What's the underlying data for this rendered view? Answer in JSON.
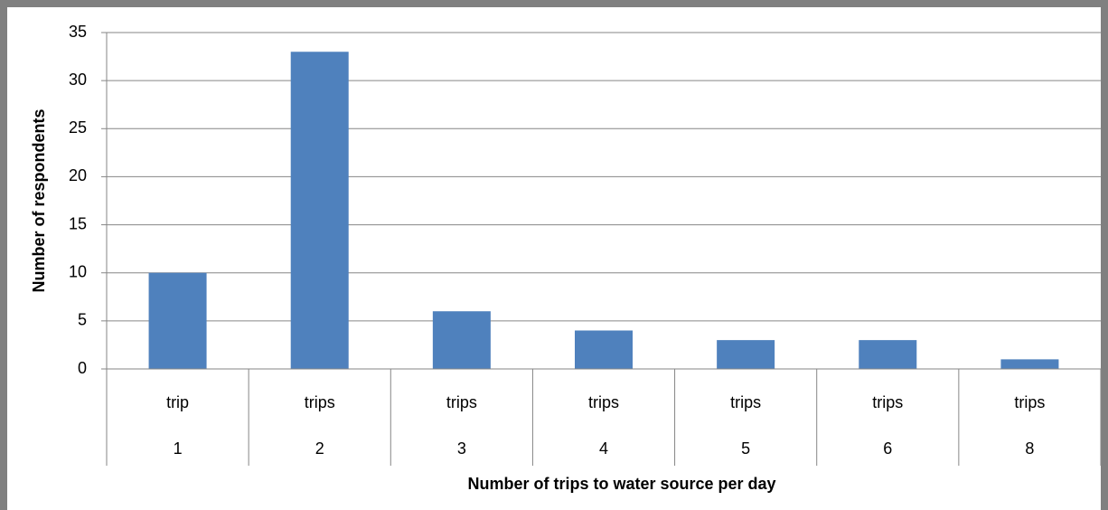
{
  "chart_data": {
    "type": "bar",
    "categories": [
      "trip",
      "trips",
      "trips",
      "trips",
      "trips",
      "trips",
      "trips"
    ],
    "category_groups": [
      "1",
      "2",
      "3",
      "4",
      "5",
      "6",
      "8"
    ],
    "values": [
      10,
      33,
      6,
      4,
      3,
      3,
      1
    ],
    "color": "#4f81bd",
    "ylim": [
      0,
      35
    ],
    "yticks": [
      0,
      5,
      10,
      15,
      20,
      25,
      30,
      35
    ],
    "grid": true,
    "x_label": "Number of trips to water source per day",
    "y_label": "Number of respondents"
  }
}
